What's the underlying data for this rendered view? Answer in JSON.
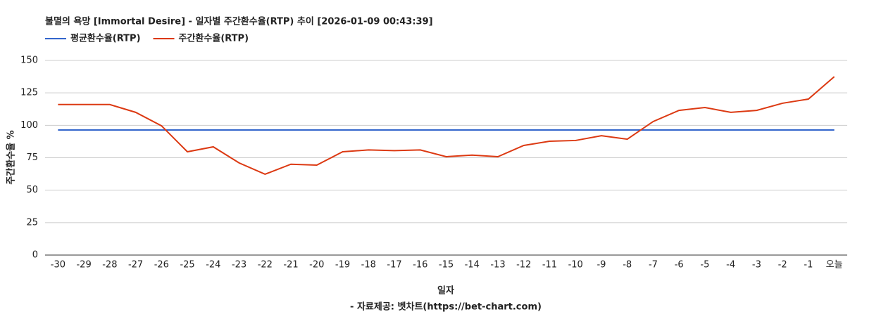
{
  "chart_data": {
    "type": "line",
    "title": "불멸의 욕망 [Immortal Desire] - 일자별 주간환수율(RTP) 추이 [2026-01-09 00:43:39]",
    "x_label": "일자",
    "y_label": "주간환수율 %",
    "source": "- 자료제공: 벳차트(https://bet-chart.com)",
    "categories": [
      "-30",
      "-29",
      "-28",
      "-27",
      "-26",
      "-25",
      "-24",
      "-23",
      "-22",
      "-21",
      "-20",
      "-19",
      "-18",
      "-17",
      "-16",
      "-15",
      "-14",
      "-13",
      "-12",
      "-11",
      "-10",
      "-9",
      "-8",
      "-7",
      "-6",
      "-5",
      "-4",
      "-3",
      "-2",
      "-1",
      "오늘"
    ],
    "series": [
      {
        "name": "평균환수율(RTP)",
        "color": "#3366cc",
        "values": [
          96.4,
          96.4,
          96.4,
          96.4,
          96.4,
          96.4,
          96.4,
          96.4,
          96.4,
          96.4,
          96.4,
          96.4,
          96.4,
          96.4,
          96.4,
          96.4,
          96.4,
          96.4,
          96.4,
          96.4,
          96.4,
          96.4,
          96.4,
          96.4,
          96.4,
          96.4,
          96.4,
          96.4,
          96.4,
          96.4,
          96.4
        ]
      },
      {
        "name": "주간환수율(RTP)",
        "color": "#dc3912",
        "values": [
          116,
          116,
          116,
          110,
          99.6,
          79.6,
          83.4,
          71,
          62.3,
          70,
          69.3,
          79.6,
          81,
          80.5,
          81,
          75.8,
          77,
          75.8,
          84.5,
          87.7,
          88.3,
          92,
          89.3,
          102.9,
          111.5,
          113.7,
          110,
          111.5,
          117,
          120.2,
          137.5
        ]
      }
    ],
    "ylim": [
      0,
      150
    ],
    "yticks": [
      0,
      25,
      50,
      75,
      100,
      125,
      150
    ],
    "grid": true,
    "legend": "top"
  }
}
